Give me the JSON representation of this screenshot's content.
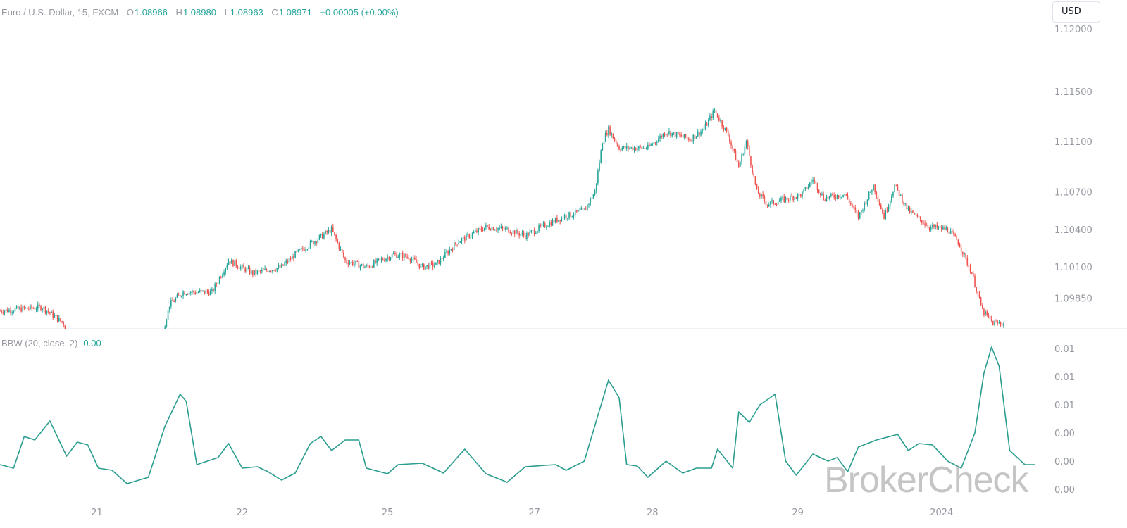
{
  "header": {
    "symbol": "Euro / U.S. Dollar, 15, FXCM",
    "open_label": "O",
    "open": "1.08966",
    "high_label": "H",
    "high": "1.08980",
    "low_label": "L",
    "low": "1.08963",
    "close_label": "C",
    "close": "1.08971",
    "change": "+0.00005 (+0.00%)"
  },
  "currency_button": "USD",
  "indicator": {
    "label": "BBW (20, close, 2)",
    "value": "0.00"
  },
  "watermark": "BrokerCheck",
  "colors": {
    "up": "#26a69a",
    "down": "#ef5350",
    "bbw_line": "#2a9d8f",
    "axis_text": "#9598a1"
  },
  "chart_data": [
    {
      "type": "candlestick",
      "title": "Euro / U.S. Dollar, 15, FXCM",
      "x_ticks": [
        {
          "label": "21",
          "bar": 64
        },
        {
          "label": "22",
          "bar": 160
        },
        {
          "label": "25",
          "bar": 256
        },
        {
          "label": "27",
          "bar": 353
        },
        {
          "label": "28",
          "bar": 431
        },
        {
          "label": "29",
          "bar": 527
        },
        {
          "label": "2024",
          "bar": 622
        }
      ],
      "y_ticks": [
        "1.12000",
        "1.11500",
        "1.11100",
        "1.10700",
        "1.10400",
        "1.10100",
        "1.09850"
      ],
      "ylim": [
        1.0963,
        1.1205
      ],
      "bars_visible": 684,
      "close_path": [
        [
          0,
          1.0975
        ],
        [
          28,
          1.0978
        ],
        [
          42,
          1.0965
        ],
        [
          45,
          1.094
        ],
        [
          108,
          1.094
        ],
        [
          109,
          1.0965
        ],
        [
          112,
          1.098
        ],
        [
          121,
          1.099
        ],
        [
          140,
          1.099
        ],
        [
          151,
          1.1015
        ],
        [
          167,
          1.1005
        ],
        [
          186,
          1.101
        ],
        [
          195,
          1.102
        ],
        [
          207,
          1.103
        ],
        [
          219,
          1.104
        ],
        [
          228,
          1.1015
        ],
        [
          242,
          1.101
        ],
        [
          260,
          1.102
        ],
        [
          270,
          1.1018
        ],
        [
          279,
          1.101
        ],
        [
          288,
          1.1012
        ],
        [
          302,
          1.103
        ],
        [
          321,
          1.1042
        ],
        [
          335,
          1.104
        ],
        [
          347,
          1.1035
        ],
        [
          358,
          1.1042
        ],
        [
          372,
          1.105
        ],
        [
          386,
          1.1055
        ],
        [
          393,
          1.107
        ],
        [
          398,
          1.111
        ],
        [
          402,
          1.112
        ],
        [
          409,
          1.1105
        ],
        [
          428,
          1.1105
        ],
        [
          440,
          1.1118
        ],
        [
          456,
          1.1112
        ],
        [
          465,
          1.112
        ],
        [
          472,
          1.1135
        ],
        [
          481,
          1.1115
        ],
        [
          488,
          1.109
        ],
        [
          493,
          1.111
        ],
        [
          500,
          1.107
        ],
        [
          507,
          1.106
        ],
        [
          530,
          1.1068
        ],
        [
          537,
          1.108
        ],
        [
          544,
          1.1065
        ],
        [
          558,
          1.1068
        ],
        [
          567,
          1.105
        ],
        [
          577,
          1.1075
        ],
        [
          584,
          1.105
        ],
        [
          591,
          1.1075
        ],
        [
          600,
          1.1055
        ],
        [
          614,
          1.1042
        ],
        [
          626,
          1.104
        ],
        [
          633,
          1.103
        ],
        [
          642,
          1.1005
        ],
        [
          649,
          1.0975
        ],
        [
          656,
          1.0965
        ],
        [
          663,
          1.0965
        ]
      ]
    },
    {
      "type": "line",
      "title": "BBW (20, close, 2)",
      "y_ticks": [
        "0.01",
        "0.01",
        "0.01",
        "0.00",
        "0.00",
        "0.00"
      ],
      "y_tick_values": [
        0.01,
        0.008,
        0.006,
        0.004,
        0.002,
        0.0
      ],
      "ylim": [
        0,
        0.0112
      ],
      "points": [
        [
          0,
          0.00175
        ],
        [
          9,
          0.0015
        ],
        [
          16,
          0.00375
        ],
        [
          23,
          0.0035
        ],
        [
          33,
          0.00485
        ],
        [
          40,
          0.00325
        ],
        [
          44,
          0.00235
        ],
        [
          51,
          0.00335
        ],
        [
          58,
          0.00315
        ],
        [
          65,
          0.0015
        ],
        [
          74,
          0.00135
        ],
        [
          84,
          0.0004
        ],
        [
          98,
          0.00085
        ],
        [
          109,
          0.0045
        ],
        [
          119,
          0.00675
        ],
        [
          123,
          0.00625
        ],
        [
          130,
          0.00175
        ],
        [
          144,
          0.00225
        ],
        [
          151,
          0.00325
        ],
        [
          160,
          0.0015
        ],
        [
          170,
          0.0016
        ],
        [
          177,
          0.00125
        ],
        [
          186,
          0.00065
        ],
        [
          195,
          0.00115
        ],
        [
          205,
          0.00325
        ],
        [
          212,
          0.00375
        ],
        [
          219,
          0.00275
        ],
        [
          228,
          0.0035
        ],
        [
          237,
          0.0035
        ],
        [
          242,
          0.0015
        ],
        [
          256,
          0.0011
        ],
        [
          263,
          0.00175
        ],
        [
          279,
          0.00185
        ],
        [
          293,
          0.00115
        ],
        [
          307,
          0.00285
        ],
        [
          321,
          0.0011
        ],
        [
          335,
          0.0005
        ],
        [
          347,
          0.0016
        ],
        [
          367,
          0.00175
        ],
        [
          374,
          0.00135
        ],
        [
          386,
          0.002
        ],
        [
          395,
          0.00525
        ],
        [
          402,
          0.00775
        ],
        [
          409,
          0.0065
        ],
        [
          414,
          0.00175
        ],
        [
          421,
          0.00165
        ],
        [
          428,
          0.00085
        ],
        [
          440,
          0.002
        ],
        [
          451,
          0.00115
        ],
        [
          460,
          0.0015
        ],
        [
          470,
          0.0015
        ],
        [
          474,
          0.00285
        ],
        [
          484,
          0.0015
        ],
        [
          488,
          0.0055
        ],
        [
          495,
          0.00475
        ],
        [
          502,
          0.006
        ],
        [
          512,
          0.00675
        ],
        [
          519,
          0.002
        ],
        [
          526,
          0.001
        ],
        [
          537,
          0.0025
        ],
        [
          547,
          0.002
        ],
        [
          553,
          0.00225
        ],
        [
          560,
          0.00125
        ],
        [
          567,
          0.003
        ],
        [
          579,
          0.0035
        ],
        [
          593,
          0.0039
        ],
        [
          600,
          0.00275
        ],
        [
          607,
          0.00325
        ],
        [
          616,
          0.00315
        ],
        [
          626,
          0.002
        ],
        [
          635,
          0.0015
        ],
        [
          644,
          0.004
        ],
        [
          650,
          0.00825
        ],
        [
          655,
          0.0101
        ],
        [
          660,
          0.00875
        ],
        [
          667,
          0.00275
        ],
        [
          677,
          0.00175
        ],
        [
          684,
          0.00175
        ]
      ]
    }
  ]
}
